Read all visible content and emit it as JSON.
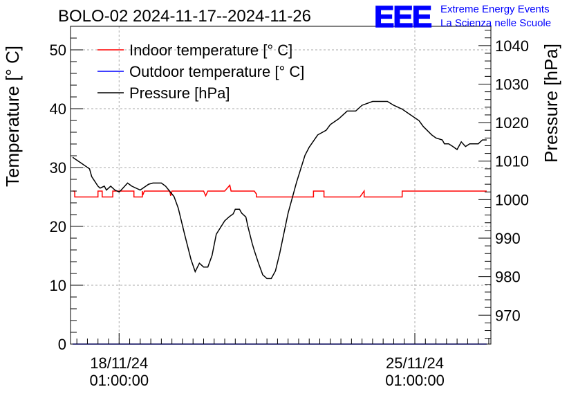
{
  "chart_data": {
    "type": "line",
    "title": "BOLO-02 2024-11-17--2024-11-26",
    "ylabel": "Temperature [° C]",
    "y2label": "Pressure [hPa]",
    "ylim": [
      0,
      54
    ],
    "y2lim": [
      962.5,
      1045
    ],
    "xlim_days": [
      -1.15,
      8.8
    ],
    "x_tick_labels": [
      {
        "day": 0,
        "line1": "18/11/24",
        "line2": "01:00:00"
      },
      {
        "day": 7,
        "line1": "25/11/24",
        "line2": "01:00:00"
      }
    ],
    "y_ticks": [
      0,
      10,
      20,
      30,
      40,
      50
    ],
    "y2_ticks": [
      970,
      980,
      990,
      1000,
      1010,
      1020,
      1030,
      1040
    ],
    "grid": true,
    "legend_position": "top-left",
    "legend": [
      {
        "label": "Indoor temperature [° C]",
        "color": "#ff0000"
      },
      {
        "label": "Outdoor temperature [° C]",
        "color": "#0000ff"
      },
      {
        "label": "Pressure [hPa]",
        "color": "#000000"
      }
    ],
    "series": [
      {
        "name": "Indoor temperature [° C]",
        "axis": "left",
        "color": "#ff0000",
        "x": [
          -1.1,
          -1.05,
          -1.05,
          -0.5,
          -0.5,
          -0.4,
          -0.4,
          -0.15,
          -0.15,
          0.35,
          0.35,
          0.55,
          0.55,
          0.56,
          0.6,
          1.2,
          1.22,
          1.25,
          2.0,
          2.05,
          2.1,
          2.5,
          2.62,
          2.65,
          3.2,
          3.25,
          3.25,
          4.6,
          4.6,
          4.85,
          4.85,
          5.7,
          5.8,
          5.8,
          6.7,
          6.7,
          7.5,
          7.5,
          8.7
        ],
        "y": [
          26,
          26,
          25,
          25,
          26,
          26,
          25,
          25,
          26,
          26,
          25,
          25,
          26,
          25.3,
          26,
          26,
          25.2,
          26,
          26,
          25.2,
          26,
          26,
          27,
          26,
          26,
          25.5,
          25,
          25,
          26,
          26,
          25,
          25,
          26,
          25,
          25,
          26,
          26,
          26,
          26
        ]
      },
      {
        "name": "Outdoor temperature [° C]",
        "axis": "left",
        "color": "#0000ff",
        "x": [
          -1.1,
          8.7
        ],
        "y": [
          0,
          0
        ]
      },
      {
        "name": "Pressure [hPa]",
        "axis": "right",
        "color": "#000000",
        "x": [
          -1.1,
          -0.9,
          -0.7,
          -0.65,
          -0.5,
          -0.45,
          -0.35,
          -0.3,
          -0.2,
          -0.1,
          0.0,
          0.05,
          0.2,
          0.3,
          0.5,
          0.7,
          0.8,
          1.0,
          1.1,
          1.3,
          1.4,
          1.55,
          1.7,
          1.8,
          1.9,
          2.0,
          2.1,
          2.2,
          2.3,
          2.5,
          2.6,
          2.7,
          2.75,
          2.85,
          2.9,
          3.0,
          3.05,
          3.15,
          3.2,
          3.3,
          3.4,
          3.5,
          3.6,
          3.7,
          3.8,
          4.0,
          4.2,
          4.4,
          4.5,
          4.7,
          4.9,
          5.0,
          5.2,
          5.4,
          5.6,
          5.75,
          6.0,
          6.2,
          6.35,
          6.5,
          6.7,
          6.9,
          7.1,
          7.2,
          7.4,
          7.5,
          7.65,
          7.7,
          7.8,
          7.9,
          8.0,
          8.1,
          8.2,
          8.3,
          8.4,
          8.5,
          8.6,
          8.7
        ],
        "y": [
          1011,
          1009.5,
          1008,
          1006,
          1003.5,
          1003,
          1003.5,
          1002.5,
          1003.5,
          1002.5,
          1002,
          1002.5,
          1004.3,
          1003.5,
          1002.5,
          1004,
          1004.3,
          1004.3,
          1003.5,
          1000.8,
          997.8,
          991,
          984.5,
          981.3,
          983.5,
          982.5,
          982.5,
          985.5,
          991,
          994.5,
          995.5,
          996.3,
          997.5,
          997.5,
          996.5,
          995.5,
          993,
          988.6,
          986.8,
          983.5,
          980.5,
          979.5,
          979.5,
          981.5,
          986,
          996.5,
          1004.5,
          1011.5,
          1013.6,
          1016.8,
          1018,
          1019.5,
          1021,
          1023,
          1023,
          1024.5,
          1025.5,
          1025.5,
          1025.5,
          1024.5,
          1023.5,
          1022,
          1020.5,
          1019,
          1016.8,
          1016,
          1015.5,
          1014.5,
          1014.5,
          1013.8,
          1013,
          1015,
          1013.8,
          1014.5,
          1014.5,
          1014.5,
          1015.5,
          1015.5
        ]
      }
    ]
  },
  "logo": {
    "mark": "EEE",
    "line1": "Extreme Energy Events",
    "line2": "La Scienza nelle Scuole",
    "color": "#0000ff"
  }
}
